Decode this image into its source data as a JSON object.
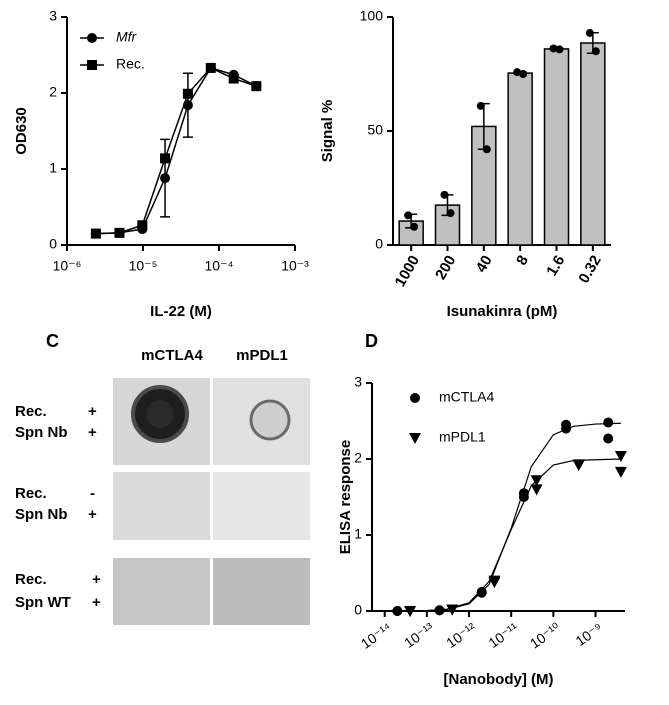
{
  "chart_data": [
    {
      "type": "line",
      "xlabel": "IL-22 (M)",
      "ylabel": "OD630",
      "xscale": "log",
      "xlim": [
        1e-06,
        0.001
      ],
      "xticks": [
        {
          "value": 1e-06,
          "label": "10⁻⁶"
        },
        {
          "value": 1e-05,
          "label": "10⁻⁵"
        },
        {
          "value": 0.0001,
          "label": "10⁻⁴"
        },
        {
          "value": 0.001,
          "label": "10⁻³"
        }
      ],
      "ylim": [
        0,
        3
      ],
      "yticks": [
        0,
        1,
        2,
        3
      ],
      "x": [
        2.4e-06,
        4.9e-06,
        9.8e-06,
        1.95e-05,
        3.9e-05,
        7.8e-05,
        0.000156,
        0.00031
      ],
      "series": [
        {
          "name": "Mfr",
          "italic": true,
          "marker": "circle",
          "color": "#000000",
          "values": [
            0.15,
            0.16,
            0.21,
            0.88,
            1.84,
            2.33,
            2.24,
            2.09
          ],
          "errors": [
            null,
            null,
            null,
            0.51,
            0.42,
            null,
            null,
            null
          ]
        },
        {
          "name": "Rec.",
          "marker": "square",
          "color": "#000000",
          "values": [
            0.15,
            0.16,
            0.26,
            1.14,
            1.99,
            2.33,
            2.19,
            2.09
          ]
        }
      ],
      "legend": "upper left"
    },
    {
      "type": "bar",
      "xlabel": "Isunakinra (pM)",
      "ylabel": "Signal %",
      "categories": [
        "1000",
        "200",
        "40",
        "8",
        "1.6",
        "0.32"
      ],
      "values": [
        10.5,
        17.5,
        52,
        75.4,
        86,
        88.6
      ],
      "errors": [
        3,
        4.5,
        10,
        0.5,
        0.5,
        4.5
      ],
      "replicates": [
        [
          13,
          8
        ],
        [
          22,
          14
        ],
        [
          61,
          42
        ],
        [
          75.8,
          75
        ],
        [
          86.2,
          85.8
        ],
        [
          93,
          85
        ]
      ],
      "color": "#c0c0c0",
      "ylim": [
        0,
        100
      ],
      "yticks": [
        0,
        50,
        100
      ]
    },
    {
      "type": "scatter",
      "panel_label": "D",
      "xlabel": "[Nanobody] (M)",
      "ylabel": "ELISA response",
      "xscale": "log",
      "xlim": [
        5e-15,
        5e-09
      ],
      "xticks": [
        {
          "value": 1e-14,
          "label": "10⁻¹⁴"
        },
        {
          "value": 1e-13,
          "label": "10⁻¹³"
        },
        {
          "value": 1e-12,
          "label": "10⁻¹²"
        },
        {
          "value": 1e-11,
          "label": "10⁻¹¹"
        },
        {
          "value": 1e-10,
          "label": "10⁻¹⁰"
        },
        {
          "value": 1e-09,
          "label": "10⁻⁹"
        }
      ],
      "ylim": [
        0,
        3
      ],
      "yticks": [
        0,
        1,
        2,
        3
      ],
      "series": [
        {
          "name": "mCTLA4",
          "marker": "circle",
          "color": "#000000",
          "x": [
            2e-14,
            2e-14,
            2e-13,
            2e-13,
            2e-12,
            2e-12,
            2e-11,
            2e-11,
            2e-10,
            2e-10,
            2e-09,
            2e-09
          ],
          "values": [
            0,
            0,
            0.01,
            0.01,
            0.24,
            0.25,
            1.55,
            1.5,
            2.45,
            2.4,
            2.48,
            2.27
          ],
          "fit_x": [
            1e-14,
            1e-13,
            3e-13,
            1e-12,
            3e-12,
            1e-11,
            3e-11,
            1e-10,
            3e-10,
            1e-09,
            4e-09
          ],
          "fit_values": [
            0,
            0.005,
            0.02,
            0.094,
            0.35,
            1.09,
            1.9,
            2.32,
            2.43,
            2.46,
            2.47
          ]
        },
        {
          "name": "mPDL1",
          "marker": "triangle-down",
          "color": "#000000",
          "x": [
            4e-14,
            4e-14,
            4e-13,
            4e-13,
            4e-12,
            4e-12,
            4e-11,
            4e-11,
            4e-10,
            4e-10,
            4e-09,
            4e-09
          ],
          "values": [
            0,
            0,
            0.02,
            0.02,
            0.4,
            0.38,
            1.6,
            1.72,
            1.92,
            1.93,
            2.04,
            1.83
          ],
          "fit_x": [
            1e-14,
            1e-13,
            3e-13,
            1e-12,
            3e-12,
            1e-11,
            3e-11,
            1e-10,
            3e-10,
            1e-09,
            4e-09
          ],
          "fit_values": [
            0,
            0.006,
            0.024,
            0.108,
            0.39,
            1.07,
            1.65,
            1.92,
            1.98,
            1.99,
            2.0
          ]
        }
      ],
      "legend": "upper left"
    }
  ],
  "blot_panel": {
    "panel_label": "C",
    "columns": [
      "mCTLA4",
      "mPDL1"
    ],
    "rows": [
      {
        "lines": [
          {
            "label": "Rec.",
            "sign": "+"
          },
          {
            "label": "Spn Nb",
            "sign": "+"
          }
        ]
      },
      {
        "lines": [
          {
            "label": "Rec.",
            "sign": "-"
          },
          {
            "label": "Spn Nb",
            "sign": "+"
          }
        ]
      },
      {
        "lines": [
          {
            "label": "Rec.",
            "sign": "+"
          },
          {
            "label": "Spn WT",
            "sign": "+"
          }
        ]
      }
    ]
  }
}
